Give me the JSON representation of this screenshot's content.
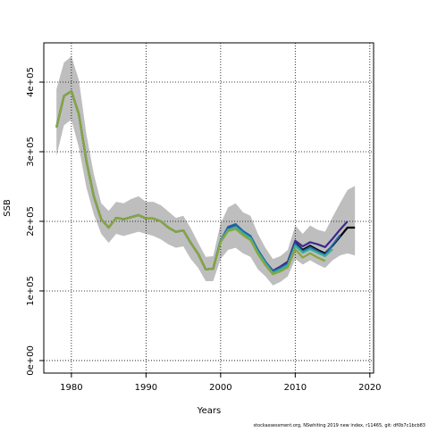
{
  "chart_data": {
    "type": "line",
    "xlabel": "Years",
    "ylabel": "SSB",
    "footnote": "stockassessment.org, NSwhiting 2019 new index, r11465, git: df0b7c1bcb83",
    "x": [
      1978,
      1979,
      1980,
      1981,
      1982,
      1983,
      1984,
      1985,
      1986,
      1987,
      1988,
      1989,
      1990,
      1991,
      1992,
      1993,
      1994,
      1995,
      1996,
      1997,
      1998,
      1999,
      2000,
      2001,
      2002,
      2003,
      2004,
      2005,
      2006,
      2007,
      2008,
      2009,
      2010,
      2011,
      2012,
      2013,
      2014,
      2015,
      2016,
      2017,
      2018
    ],
    "band": {
      "color": "#bebebe",
      "upper": [
        390000,
        428000,
        437000,
        403000,
        326000,
        268000,
        226000,
        215000,
        228000,
        226000,
        232000,
        236000,
        228000,
        228000,
        223000,
        214000,
        205000,
        208000,
        190000,
        169000,
        149000,
        150000,
        197000,
        220000,
        226000,
        213000,
        208000,
        182000,
        162000,
        146000,
        150000,
        159000,
        194000,
        182000,
        194000,
        188000,
        185000,
        206000,
        226000,
        245000,
        251000
      ],
      "lower": [
        294000,
        338000,
        346000,
        306000,
        249000,
        210000,
        182000,
        169000,
        182000,
        179000,
        182000,
        185000,
        182000,
        179000,
        174000,
        167000,
        162000,
        164000,
        146000,
        133000,
        114000,
        114000,
        146000,
        159000,
        162000,
        154000,
        149000,
        131000,
        121000,
        108000,
        113000,
        121000,
        146000,
        138000,
        144000,
        138000,
        133000,
        144000,
        151000,
        154000,
        151000
      ]
    },
    "series": [
      {
        "color": "#000000",
        "values": [
          335000,
          380000,
          387000,
          354000,
          287000,
          236000,
          203000,
          191000,
          205000,
          203000,
          206000,
          209000,
          204000,
          204000,
          200000,
          191000,
          185000,
          187000,
          169000,
          153000,
          131000,
          132000,
          172000,
          190000,
          194000,
          185000,
          178000,
          158000,
          142000,
          127000,
          132000,
          138000,
          169000,
          159000,
          165000,
          159000,
          154000,
          165000,
          178000,
          191000,
          191000
        ]
      },
      {
        "color": "#3b2a8a",
        "values": [
          335000,
          380000,
          387000,
          354000,
          287000,
          236000,
          203000,
          191000,
          205000,
          203000,
          206000,
          209000,
          204000,
          204000,
          200000,
          191000,
          185000,
          187000,
          169000,
          153000,
          131000,
          132000,
          172000,
          190000,
          194000,
          185000,
          178000,
          158000,
          142000,
          129000,
          135000,
          142000,
          172000,
          164000,
          170000,
          167000,
          163000,
          175000,
          188000,
          200000,
          null
        ]
      },
      {
        "color": "#2262a8",
        "values": [
          335000,
          380000,
          387000,
          354000,
          287000,
          236000,
          203000,
          191000,
          205000,
          203000,
          206000,
          209000,
          204000,
          204000,
          200000,
          191000,
          185000,
          187000,
          169000,
          153000,
          131000,
          132000,
          172000,
          192000,
          196000,
          186000,
          179000,
          159000,
          142000,
          128000,
          133000,
          139000,
          168000,
          157000,
          163000,
          157000,
          152000,
          166000,
          180000,
          null,
          null
        ]
      },
      {
        "color": "#39b09a",
        "values": [
          335000,
          380000,
          387000,
          354000,
          287000,
          236000,
          203000,
          191000,
          205000,
          203000,
          206000,
          209000,
          204000,
          204000,
          200000,
          191000,
          185000,
          187000,
          169000,
          153000,
          131000,
          132000,
          172000,
          188000,
          192000,
          183000,
          176000,
          156000,
          140000,
          126000,
          131000,
          137000,
          165000,
          155000,
          160000,
          155000,
          150000,
          160000,
          null,
          null,
          null
        ]
      },
      {
        "color": "#8aa53a",
        "values": [
          335000,
          380000,
          387000,
          354000,
          287000,
          236000,
          203000,
          191000,
          205000,
          203000,
          206000,
          209000,
          204000,
          204000,
          200000,
          191000,
          185000,
          187000,
          169000,
          153000,
          131000,
          132000,
          170000,
          186000,
          189000,
          180000,
          173000,
          153000,
          137000,
          124000,
          128000,
          134000,
          160000,
          148000,
          154000,
          148000,
          143000,
          null,
          null,
          null,
          null
        ]
      }
    ],
    "xlim": [
      1976.3,
      2020.5
    ],
    "ylim": [
      -18000,
      456400
    ],
    "xticks": [
      1980,
      1990,
      2000,
      2010,
      2020
    ],
    "yticks": [
      {
        "value": 0,
        "label": "0e+00"
      },
      {
        "value": 100000,
        "label": "1e+05"
      },
      {
        "value": 200000,
        "label": "2e+05"
      },
      {
        "value": 300000,
        "label": "3e+05"
      },
      {
        "value": 400000,
        "label": "4e+05"
      }
    ],
    "grid": true
  }
}
